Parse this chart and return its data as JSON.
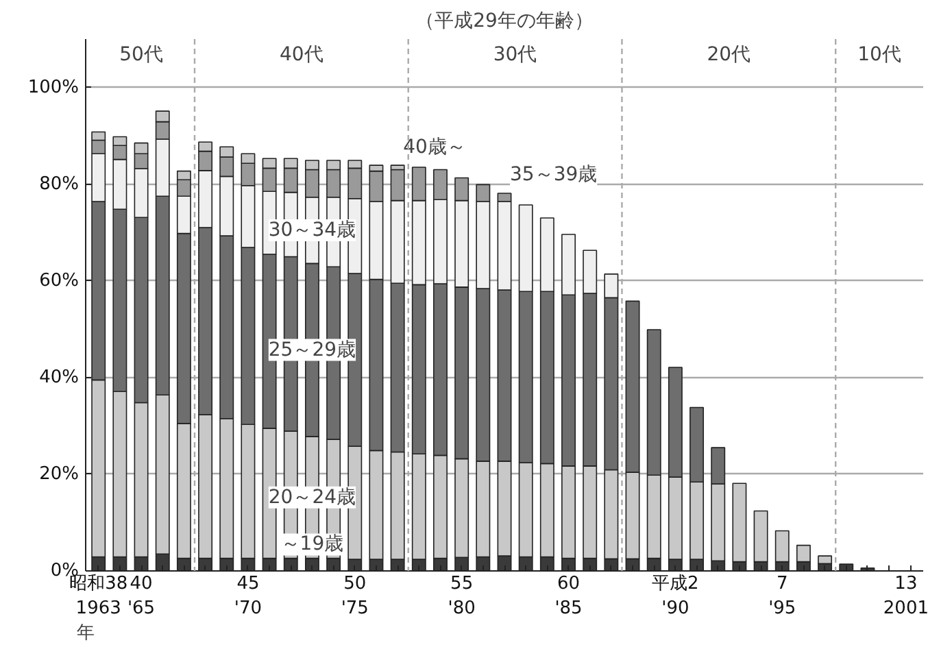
{
  "chart_data": {
    "type": "bar",
    "stacked": true,
    "title": "（平成29年の年齢）",
    "xlabel": "年",
    "categories": [
      "昭和38\n1963",
      null,
      "40\n'65",
      null,
      null,
      null,
      null,
      "45\n'70",
      null,
      null,
      null,
      null,
      "50\n'75",
      null,
      null,
      null,
      null,
      "55\n'80",
      null,
      null,
      null,
      null,
      "60\n'85",
      null,
      null,
      null,
      null,
      "平成2\n'90",
      null,
      null,
      null,
      null,
      "7\n'95",
      null,
      null,
      null,
      null,
      null,
      "13\n2001"
    ],
    "series": [
      {
        "name": "～19歳",
        "color": "#3a3a3a",
        "values": [
          2.9,
          2.9,
          2.9,
          3.5,
          2.6,
          2.6,
          2.6,
          2.6,
          2.6,
          2.6,
          2.6,
          2.6,
          2.4,
          2.4,
          2.4,
          2.4,
          2.6,
          2.8,
          2.9,
          3.1,
          2.9,
          2.9,
          2.6,
          2.6,
          2.5,
          2.5,
          2.6,
          2.4,
          2.4,
          2.1,
          1.9,
          1.9,
          1.9,
          1.9,
          1.5,
          1.4,
          0.6,
          null,
          null
        ]
      },
      {
        "name": "20～24歳",
        "color": "#c8c8c8",
        "values": [
          36.6,
          34.2,
          31.9,
          32.9,
          27.9,
          29.7,
          28.9,
          27.7,
          26.9,
          26.3,
          25.2,
          24.6,
          23.4,
          22.5,
          22.2,
          21.8,
          21.3,
          20.4,
          19.8,
          19.6,
          19.5,
          19.3,
          19.1,
          19.1,
          18.4,
          17.9,
          17.2,
          17.0,
          16.0,
          15.9,
          16.2,
          10.5,
          6.4,
          3.4,
          1.6,
          null,
          null,
          null,
          null
        ]
      },
      {
        "name": "25～29歳",
        "color": "#6e6e6e",
        "values": [
          36.9,
          37.7,
          38.3,
          41.1,
          39.3,
          38.7,
          37.8,
          36.6,
          36.0,
          36.1,
          35.8,
          35.7,
          35.7,
          35.4,
          34.9,
          35.0,
          35.5,
          35.5,
          35.7,
          35.4,
          35.4,
          35.6,
          35.4,
          35.7,
          35.6,
          35.4,
          30.1,
          22.7,
          15.4,
          7.5,
          null,
          null,
          null,
          null,
          null,
          null,
          null,
          null,
          null
        ]
      },
      {
        "name": "30～34歳",
        "color": "#efefef",
        "values": [
          9.9,
          10.3,
          10.1,
          11.8,
          7.7,
          11.8,
          12.3,
          12.8,
          13.0,
          13.3,
          13.7,
          14.4,
          15.5,
          16.1,
          17.1,
          17.4,
          17.4,
          17.9,
          18.0,
          18.3,
          17.9,
          15.2,
          12.5,
          8.9,
          4.9,
          null,
          null,
          null,
          null,
          null,
          null,
          null,
          null,
          null,
          null,
          null,
          null,
          null,
          null
        ]
      },
      {
        "name": "35～39歳",
        "color": "#9a9a9a",
        "values": [
          2.8,
          2.9,
          3.1,
          3.6,
          3.4,
          4.0,
          4.0,
          4.6,
          4.8,
          5.0,
          5.7,
          5.7,
          6.3,
          6.3,
          6.4,
          6.9,
          6.2,
          4.7,
          3.5,
          1.7,
          null,
          null,
          null,
          null,
          null,
          null,
          null,
          null,
          null,
          null,
          null,
          null,
          null,
          null,
          null,
          null,
          null,
          null,
          null
        ]
      },
      {
        "name": "40歳～",
        "color": "#c4c4c4",
        "values": [
          1.7,
          1.8,
          2.2,
          2.2,
          1.8,
          1.9,
          2.1,
          2.0,
          2.0,
          2.0,
          1.9,
          1.9,
          1.6,
          1.2,
          0.9,
          null,
          null,
          null,
          null,
          null,
          null,
          null,
          null,
          null,
          null,
          null,
          null,
          null,
          null,
          null,
          null,
          null,
          null,
          null,
          null,
          null,
          null,
          null,
          null
        ]
      }
    ],
    "ylim": [
      0,
      110
    ],
    "yticks": [
      {
        "value": 0,
        "label": "0%"
      },
      {
        "value": 20,
        "label": "20%"
      },
      {
        "value": 40,
        "label": "40%"
      },
      {
        "value": 60,
        "label": "60%"
      },
      {
        "value": 80,
        "label": "80%"
      },
      {
        "value": 100,
        "label": "100%"
      }
    ],
    "grid": "y",
    "annotations": [
      "50代",
      "40代",
      "30代",
      "20代",
      "10代"
    ]
  }
}
